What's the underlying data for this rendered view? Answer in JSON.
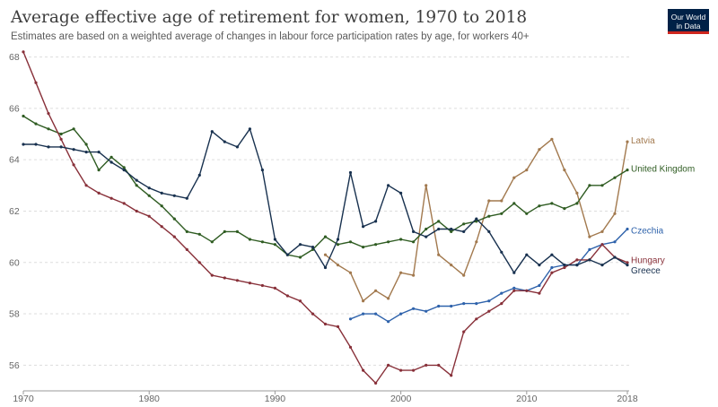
{
  "header": {
    "title": "Average effective age of retirement for women, 1970 to 2018",
    "subtitle": "Estimates are based on a weighted average of changes in labour force participation rates by age, for workers 40+",
    "logo_line1": "Our World",
    "logo_line2": "in Data"
  },
  "colors": {
    "background": "#ffffff",
    "grid": "#dddddd",
    "axis": "#999999"
  },
  "chart_data": {
    "type": "line",
    "title": "Average effective age of retirement for women, 1970 to 2018",
    "subtitle": "Estimates are based on a weighted average of changes in labour force participation rates by age, for workers 40+",
    "xlabel": "",
    "ylabel": "",
    "xlim": [
      1970,
      2018
    ],
    "ylim": [
      55,
      68.3
    ],
    "x_ticks": [
      1970,
      1980,
      1990,
      2000,
      2010,
      2018
    ],
    "y_ticks": [
      56,
      58,
      60,
      62,
      64,
      66,
      68
    ],
    "grid": "horizontal dashed",
    "legend": "inline labels at right end of lines",
    "series": [
      {
        "name": "Latvia",
        "color": "#a2794e",
        "points": [
          [
            1994,
            60.3
          ],
          [
            1995,
            59.9
          ],
          [
            1996,
            59.6
          ],
          [
            1997,
            58.5
          ],
          [
            1998,
            58.9
          ],
          [
            1999,
            58.6
          ],
          [
            2000,
            59.6
          ],
          [
            2001,
            59.5
          ],
          [
            2002,
            63.0
          ],
          [
            2003,
            60.3
          ],
          [
            2004,
            59.9
          ],
          [
            2005,
            59.5
          ],
          [
            2006,
            60.8
          ],
          [
            2007,
            62.4
          ],
          [
            2008,
            62.4
          ],
          [
            2009,
            63.3
          ],
          [
            2010,
            63.6
          ],
          [
            2011,
            64.4
          ],
          [
            2012,
            64.8
          ],
          [
            2013,
            63.6
          ],
          [
            2014,
            62.7
          ],
          [
            2015,
            61.0
          ],
          [
            2016,
            61.2
          ],
          [
            2017,
            61.9
          ],
          [
            2018,
            64.7
          ]
        ]
      },
      {
        "name": "United Kingdom",
        "color": "#2f5c22",
        "points": [
          [
            1970,
            65.7
          ],
          [
            1971,
            65.4
          ],
          [
            1972,
            65.2
          ],
          [
            1973,
            65.0
          ],
          [
            1974,
            65.2
          ],
          [
            1975,
            64.6
          ],
          [
            1976,
            63.6
          ],
          [
            1977,
            64.1
          ],
          [
            1978,
            63.7
          ],
          [
            1979,
            63.0
          ],
          [
            1980,
            62.6
          ],
          [
            1981,
            62.2
          ],
          [
            1982,
            61.7
          ],
          [
            1983,
            61.2
          ],
          [
            1984,
            61.1
          ],
          [
            1985,
            60.8
          ],
          [
            1986,
            61.2
          ],
          [
            1987,
            61.2
          ],
          [
            1988,
            60.9
          ],
          [
            1989,
            60.8
          ],
          [
            1990,
            60.7
          ],
          [
            1991,
            60.3
          ],
          [
            1992,
            60.2
          ],
          [
            1993,
            60.5
          ],
          [
            1994,
            61.0
          ],
          [
            1995,
            60.7
          ],
          [
            1996,
            60.8
          ],
          [
            1997,
            60.6
          ],
          [
            1998,
            60.7
          ],
          [
            1999,
            60.8
          ],
          [
            2000,
            60.9
          ],
          [
            2001,
            60.8
          ],
          [
            2002,
            61.3
          ],
          [
            2003,
            61.6
          ],
          [
            2004,
            61.2
          ],
          [
            2005,
            61.5
          ],
          [
            2006,
            61.6
          ],
          [
            2007,
            61.8
          ],
          [
            2008,
            61.9
          ],
          [
            2009,
            62.3
          ],
          [
            2010,
            61.9
          ],
          [
            2011,
            62.2
          ],
          [
            2012,
            62.3
          ],
          [
            2013,
            62.1
          ],
          [
            2014,
            62.3
          ],
          [
            2015,
            63.0
          ],
          [
            2016,
            63.0
          ],
          [
            2017,
            63.3
          ],
          [
            2018,
            63.6
          ]
        ]
      },
      {
        "name": "Czechia",
        "color": "#2e62ab",
        "points": [
          [
            1996,
            57.8
          ],
          [
            1997,
            58.0
          ],
          [
            1998,
            58.0
          ],
          [
            1999,
            57.7
          ],
          [
            2000,
            58.0
          ],
          [
            2001,
            58.2
          ],
          [
            2002,
            58.1
          ],
          [
            2003,
            58.3
          ],
          [
            2004,
            58.3
          ],
          [
            2005,
            58.4
          ],
          [
            2006,
            58.4
          ],
          [
            2007,
            58.5
          ],
          [
            2008,
            58.8
          ],
          [
            2009,
            59.0
          ],
          [
            2010,
            58.9
          ],
          [
            2011,
            59.1
          ],
          [
            2012,
            59.8
          ],
          [
            2013,
            59.9
          ],
          [
            2014,
            59.9
          ],
          [
            2015,
            60.5
          ],
          [
            2016,
            60.7
          ],
          [
            2017,
            60.8
          ],
          [
            2018,
            61.3
          ]
        ]
      },
      {
        "name": "Hungary",
        "color": "#883039",
        "points": [
          [
            1970,
            68.2
          ],
          [
            1971,
            67.0
          ],
          [
            1972,
            65.8
          ],
          [
            1973,
            64.8
          ],
          [
            1974,
            63.8
          ],
          [
            1975,
            63.0
          ],
          [
            1976,
            62.7
          ],
          [
            1977,
            62.5
          ],
          [
            1978,
            62.3
          ],
          [
            1979,
            62.0
          ],
          [
            1980,
            61.8
          ],
          [
            1981,
            61.4
          ],
          [
            1982,
            61.0
          ],
          [
            1983,
            60.5
          ],
          [
            1984,
            60.0
          ],
          [
            1985,
            59.5
          ],
          [
            1986,
            59.4
          ],
          [
            1987,
            59.3
          ],
          [
            1988,
            59.2
          ],
          [
            1989,
            59.1
          ],
          [
            1990,
            59.0
          ],
          [
            1991,
            58.7
          ],
          [
            1992,
            58.5
          ],
          [
            1993,
            58.0
          ],
          [
            1994,
            57.6
          ],
          [
            1995,
            57.5
          ],
          [
            1996,
            56.7
          ],
          [
            1997,
            55.8
          ],
          [
            1998,
            55.3
          ],
          [
            1999,
            56.0
          ],
          [
            2000,
            55.8
          ],
          [
            2001,
            55.8
          ],
          [
            2002,
            56.0
          ],
          [
            2003,
            56.0
          ],
          [
            2004,
            55.6
          ],
          [
            2005,
            57.3
          ],
          [
            2006,
            57.8
          ],
          [
            2007,
            58.1
          ],
          [
            2008,
            58.4
          ],
          [
            2009,
            58.9
          ],
          [
            2010,
            58.9
          ],
          [
            2011,
            58.8
          ],
          [
            2012,
            59.6
          ],
          [
            2013,
            59.8
          ],
          [
            2014,
            60.1
          ],
          [
            2015,
            60.1
          ],
          [
            2016,
            60.7
          ],
          [
            2017,
            60.2
          ],
          [
            2018,
            60.0
          ]
        ]
      },
      {
        "name": "Greece",
        "color": "#18314f",
        "points": [
          [
            1970,
            64.6
          ],
          [
            1971,
            64.6
          ],
          [
            1972,
            64.5
          ],
          [
            1973,
            64.5
          ],
          [
            1974,
            64.4
          ],
          [
            1975,
            64.3
          ],
          [
            1976,
            64.3
          ],
          [
            1977,
            63.9
          ],
          [
            1978,
            63.6
          ],
          [
            1979,
            63.2
          ],
          [
            1980,
            62.9
          ],
          [
            1981,
            62.7
          ],
          [
            1982,
            62.6
          ],
          [
            1983,
            62.5
          ],
          [
            1984,
            63.4
          ],
          [
            1985,
            65.1
          ],
          [
            1986,
            64.7
          ],
          [
            1987,
            64.5
          ],
          [
            1988,
            65.2
          ],
          [
            1989,
            63.6
          ],
          [
            1990,
            60.9
          ],
          [
            1991,
            60.3
          ],
          [
            1992,
            60.7
          ],
          [
            1993,
            60.6
          ],
          [
            1994,
            59.8
          ],
          [
            1995,
            60.9
          ],
          [
            1996,
            63.5
          ],
          [
            1997,
            61.4
          ],
          [
            1998,
            61.6
          ],
          [
            1999,
            63.0
          ],
          [
            2000,
            62.7
          ],
          [
            2001,
            61.2
          ],
          [
            2002,
            61.0
          ],
          [
            2003,
            61.3
          ],
          [
            2004,
            61.3
          ],
          [
            2005,
            61.2
          ],
          [
            2006,
            61.7
          ],
          [
            2007,
            61.2
          ],
          [
            2008,
            60.4
          ],
          [
            2009,
            59.6
          ],
          [
            2010,
            60.3
          ],
          [
            2011,
            59.9
          ],
          [
            2012,
            60.3
          ],
          [
            2013,
            59.9
          ],
          [
            2014,
            59.9
          ],
          [
            2015,
            60.1
          ],
          [
            2016,
            59.9
          ],
          [
            2017,
            60.2
          ],
          [
            2018,
            59.9
          ]
        ]
      }
    ],
    "labels": [
      {
        "series": "Latvia",
        "text": "Latvia",
        "y": 64.75
      },
      {
        "series": "United Kingdom",
        "text": "United Kingdom",
        "y": 63.65
      },
      {
        "series": "Czechia",
        "text": "Czechia",
        "y": 61.25
      },
      {
        "series": "Hungary",
        "text": "Hungary",
        "y": 60.1
      },
      {
        "series": "Greece",
        "text": "Greece",
        "y": 59.7
      }
    ]
  }
}
